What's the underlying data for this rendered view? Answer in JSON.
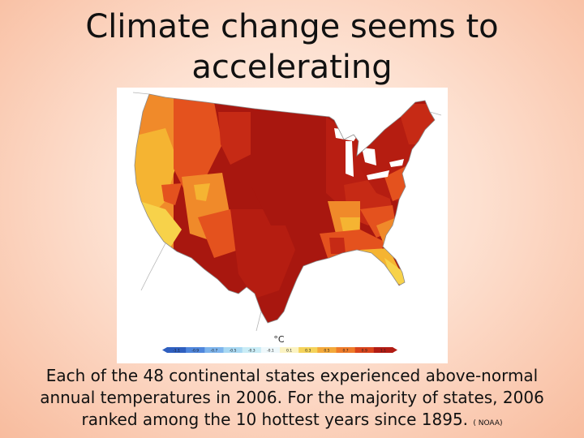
{
  "slide": {
    "title": "Climate change seems to accelerating",
    "caption": "Each of the 48 continental states experienced above-normal annual temperatures in 2006. For the majority of states, 2006 ranked among the 10 hottest years since 1895.",
    "source": "( NOAA)"
  },
  "map": {
    "unit_label": "°C",
    "colorbar": {
      "ticks": [
        "-1.1",
        "-0.9",
        "-0.7",
        "-0.5",
        "-0.3",
        "-0.1",
        "0.1",
        "0.3",
        "0.5",
        "0.7",
        "0.9",
        "1.1"
      ],
      "colors": [
        "#2f5fbf",
        "#4f86dc",
        "#7db4ec",
        "#a8d8f2",
        "#c9ecf6",
        "#eef8fb",
        "#fbf3c2",
        "#f4d35a",
        "#f3a93a",
        "#ee7b2a",
        "#d9441c",
        "#b11c14"
      ]
    },
    "region_colors": {
      "darkest": "#a8170f",
      "dark": "#c62a15",
      "red_orange": "#e4521e",
      "orange": "#f08a2a",
      "yellow_orange": "#f5b432",
      "yellow": "#f7d24a"
    }
  }
}
